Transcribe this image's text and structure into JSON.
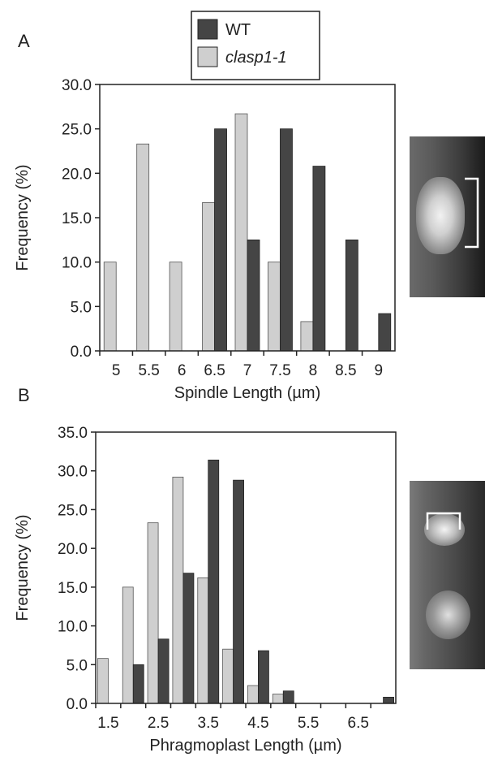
{
  "panel_labels": [
    "A",
    "B"
  ],
  "legend": {
    "items": [
      {
        "label": "WT",
        "color": "#454545"
      },
      {
        "label": "clasp1-1",
        "color": "#cfcfcf",
        "italic": true
      }
    ]
  },
  "colors": {
    "wt": "#454545",
    "clasp": "#cfcfcf",
    "axis": "#222222"
  },
  "chart_data": [
    {
      "type": "bar",
      "ylabel": "Frequency (%)",
      "xlabel": "Spindle Length (µm)",
      "ylim": [
        0,
        30
      ],
      "yticks": [
        "0.0",
        "5.0",
        "10.0",
        "15.0",
        "20.0",
        "25.0",
        "30.0"
      ],
      "categories": [
        "5",
        "5.5",
        "6",
        "6.5",
        "7",
        "7.5",
        "8",
        "8.5",
        "9"
      ],
      "series": [
        {
          "name": "clasp1-1",
          "values": [
            10.0,
            23.3,
            10.0,
            16.7,
            26.7,
            10.0,
            3.3,
            0,
            0
          ]
        },
        {
          "name": "WT",
          "values": [
            0,
            0,
            0,
            25.0,
            12.5,
            25.0,
            20.8,
            12.5,
            4.2
          ]
        }
      ],
      "grid": false
    },
    {
      "type": "bar",
      "ylabel": "Frequency (%)",
      "xlabel": "Phragmoplast Length (µm)",
      "ylim": [
        0,
        35
      ],
      "yticks": [
        "0.0",
        "5.0",
        "10.0",
        "15.0",
        "20.0",
        "25.0",
        "30.0",
        "35.0"
      ],
      "categories": [
        "1.5",
        "2",
        "2.5",
        "3",
        "3.5",
        "4",
        "4.5",
        "5",
        "5.5",
        "6",
        "6.5",
        "7"
      ],
      "xtick_labels": [
        "1.5",
        "2.5",
        "3.5",
        "4.5",
        "5.5",
        "6.5"
      ],
      "series": [
        {
          "name": "clasp1-1",
          "values": [
            5.8,
            15.0,
            23.3,
            29.2,
            16.2,
            7.0,
            2.3,
            1.2,
            0,
            0,
            0,
            0
          ]
        },
        {
          "name": "WT",
          "values": [
            0,
            5.0,
            8.3,
            16.8,
            31.4,
            28.8,
            6.8,
            1.6,
            0,
            0,
            0,
            0.8
          ]
        }
      ],
      "grid": false
    }
  ]
}
